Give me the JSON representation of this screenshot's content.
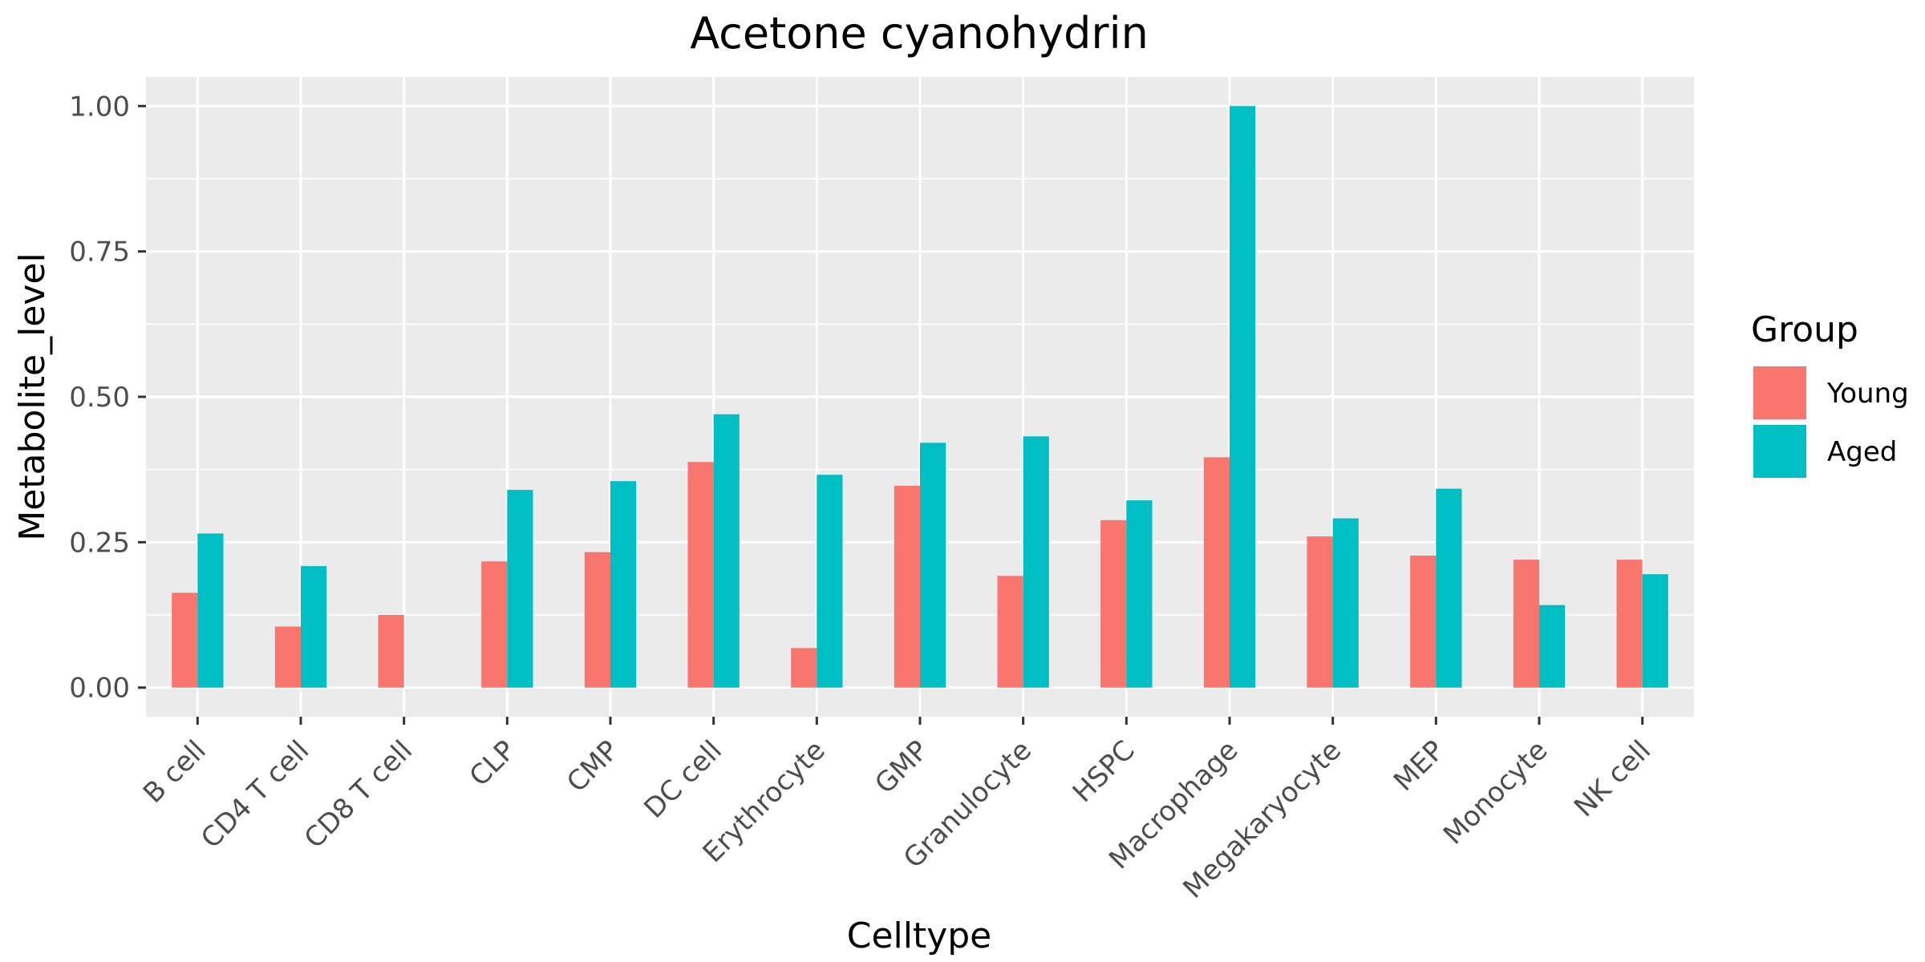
{
  "chart_data": {
    "type": "bar",
    "title": "Acetone cyanohydrin",
    "xlabel": "Celltype",
    "ylabel": "Metabolite_level",
    "categories": [
      "B cell",
      "CD4 T cell",
      "CD8 T cell",
      "CLP",
      "CMP",
      "DC cell",
      "Erythrocyte",
      "GMP",
      "Granulocyte",
      "HSPC",
      "Macrophage",
      "Megakaryocyte",
      "MEP",
      "Monocyte",
      "NK cell"
    ],
    "series": [
      {
        "name": "Young",
        "color": "#F8766D",
        "values": [
          0.163,
          0.105,
          0.125,
          0.217,
          0.233,
          0.388,
          0.068,
          0.347,
          0.192,
          0.288,
          0.396,
          0.26,
          0.227,
          0.22,
          0.22
        ]
      },
      {
        "name": "Aged",
        "color": "#00BFC4",
        "values": [
          0.265,
          0.209,
          null,
          0.34,
          0.355,
          0.47,
          0.366,
          0.421,
          0.432,
          0.322,
          1.0,
          0.291,
          0.342,
          0.142,
          0.195
        ]
      }
    ],
    "ylim": [
      -0.05,
      1.05
    ],
    "yticks": [
      0.0,
      0.25,
      0.5,
      0.75,
      1.0
    ],
    "ytick_labels": [
      "0.00",
      "0.25",
      "0.50",
      "0.75",
      "1.00"
    ],
    "grid": true,
    "legend": {
      "title": "Group",
      "position": "right"
    }
  }
}
